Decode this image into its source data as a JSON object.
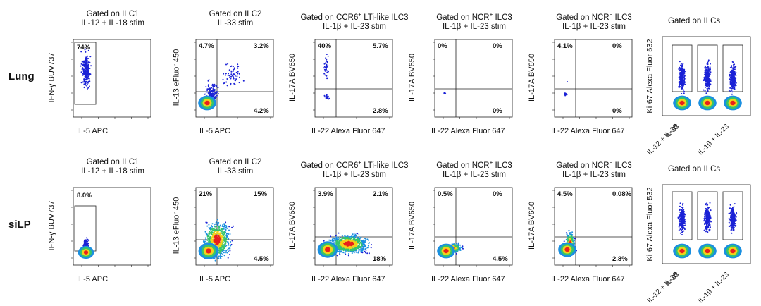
{
  "rows": [
    {
      "label": "Lung"
    },
    {
      "label": "siLP"
    }
  ],
  "panels": {
    "ilc1": {
      "title_line1": "Gated on ILC1",
      "title_line2": "IL-12 + IL-18 stim",
      "ylabel": "IFN-γ BUV737",
      "xlabel": "IL-5 APC"
    },
    "ilc2": {
      "title_line1": "Gated on ILC2",
      "title_line2": "IL-33 stim",
      "ylabel": "IL-13 eFluor 450",
      "xlabel": "IL-5 APC"
    },
    "lti": {
      "title_line1_pre": "Gated on CCR6",
      "title_line1_sup": "+",
      "title_line1_post": " LTi-like ILC3",
      "title_line2": "IL-1β + IL-23 stim",
      "ylabel": "IL-17A BV650",
      "xlabel": "IL-22 Alexa Fluor 647"
    },
    "ncrpos": {
      "title_line1_pre": "Gated on NCR",
      "title_line1_sup": "+",
      "title_line1_post": " ILC3",
      "title_line2": "IL-1β + IL-23 stim",
      "ylabel": "IL-17A BV650",
      "xlabel": "IL-22 Alexa Fluor 647"
    },
    "ncrneg": {
      "title_line1_pre": "Gated on NCR",
      "title_line1_sup": "−",
      "title_line1_post": " ILC3",
      "title_line2": "IL-1β + IL-23 stim",
      "ylabel": "IL-17A BV650",
      "xlabel": "IL-22 Alexa Fluor 647"
    },
    "ki67": {
      "title": "Gated on ILCs",
      "ylabel": "Ki-67 Alexa Fluor 532",
      "categories": [
        "IL-12 + IL-18",
        "IL-33",
        "IL-1β + IL-23"
      ]
    }
  },
  "quadrants": {
    "lung": {
      "ilc1": {
        "q1": "74%"
      },
      "ilc2": {
        "ul": "4.7%",
        "ur": "3.2%",
        "lr": "4.2%"
      },
      "lti": {
        "ul": "40%",
        "ur": "5.7%",
        "lr": "2.8%"
      },
      "ncrpos": {
        "ul": "0%",
        "ur": "0%",
        "lr": "0%"
      },
      "ncrneg": {
        "ul": "4.1%",
        "ur": "0%",
        "lr": "0%"
      }
    },
    "silp": {
      "ilc1": {
        "q1": "8.0%"
      },
      "ilc2": {
        "ul": "21%",
        "ur": "15%",
        "lr": "4.5%"
      },
      "lti": {
        "ul": "3.9%",
        "ur": "2.1%",
        "lr": "18%"
      },
      "ncrpos": {
        "ul": "0.5%",
        "ur": "0%",
        "lr": "4.5%"
      },
      "ncrneg": {
        "ul": "4.5%",
        "ur": "0.08%",
        "lr": "2.8%"
      }
    }
  },
  "colors": {
    "density_high": "#e8201c",
    "density_mid": "#f3d21a",
    "density_low_mid": "#36c46a",
    "density_low": "#1a8fe0",
    "sparse": "#1b22d6"
  }
}
